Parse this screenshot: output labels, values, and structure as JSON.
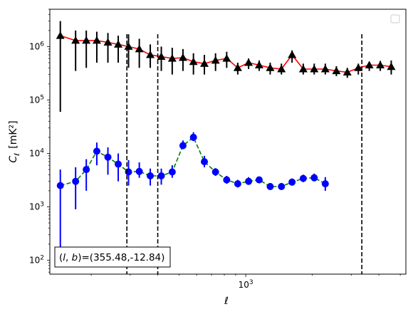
{
  "chart_data": {
    "type": "scatter",
    "xscale": "log",
    "yscale": "log",
    "xlim": [
      130,
      5300
    ],
    "ylim": [
      55,
      5000000
    ],
    "xlabel": "ℓ",
    "ylabel_main": "C",
    "ylabel_sub": "ℓ",
    "ylabel_unit": "[mK²]",
    "x_tick_labels": [
      {
        "value": 1000,
        "base": "10",
        "exp": "3"
      }
    ],
    "y_tick_labels": [
      {
        "value": 100,
        "base": "10",
        "exp": "2"
      },
      {
        "value": 1000,
        "base": "10",
        "exp": "3"
      },
      {
        "value": 10000,
        "base": "10",
        "exp": "4"
      },
      {
        "value": 100000,
        "base": "10",
        "exp": "5"
      },
      {
        "value": 1000000,
        "base": "10",
        "exp": "6"
      }
    ],
    "annotation": "(l, b)=(355.48,-12.84)",
    "annotation_parts": {
      "open": "(",
      "l": "l",
      "comma": ", ",
      "b": "b",
      "close": ")",
      "value": "=(355.48,-12.84)"
    },
    "vlines": [
      290,
      400,
      3350
    ],
    "legend": "top-right (empty)",
    "grid": false,
    "x": [
      145,
      170,
      190,
      212,
      238,
      265,
      295,
      330,
      370,
      415,
      465,
      520,
      580,
      650,
      730,
      820,
      920,
      1030,
      1150,
      1290,
      1450,
      1620,
      1820,
      2040,
      2290,
      2570,
      2880,
      3230,
      3620,
      4060,
      4550
    ],
    "series": [
      {
        "color": "#ff0000",
        "marker": "triangle",
        "marker_color": "#000000",
        "error_color": "#000000",
        "line": "solid",
        "y": [
          1600000,
          1300000,
          1300000,
          1300000,
          1200000,
          1100000,
          1000000,
          900000,
          700000,
          650000,
          600000,
          620000,
          520000,
          480000,
          550000,
          600000,
          400000,
          500000,
          450000,
          400000,
          380000,
          700000,
          380000,
          380000,
          380000,
          350000,
          330000,
          400000,
          450000,
          450000,
          420000
        ],
        "ylow": [
          60000,
          350000,
          400000,
          500000,
          500000,
          500000,
          400000,
          400000,
          400000,
          350000,
          300000,
          350000,
          300000,
          300000,
          350000,
          400000,
          300000,
          380000,
          350000,
          300000,
          300000,
          500000,
          300000,
          300000,
          300000,
          280000,
          260000,
          300000,
          350000,
          350000,
          300000
        ],
        "yhigh": [
          3000000,
          2000000,
          2000000,
          1900000,
          1800000,
          1600000,
          1700000,
          1400000,
          1100000,
          1000000,
          950000,
          900000,
          750000,
          700000,
          750000,
          800000,
          500000,
          600000,
          550000,
          500000,
          480000,
          850000,
          480000,
          480000,
          480000,
          430000,
          400000,
          480000,
          520000,
          540000,
          550000
        ]
      },
      {
        "color": "#008000",
        "marker": "circle",
        "marker_color": "#0000ff",
        "error_color": "#0000ff",
        "line": "dashed",
        "y": [
          2500,
          3000,
          5000,
          11000,
          8500,
          6300,
          4500,
          4600,
          3800,
          3800,
          4500,
          14000,
          20000,
          7000,
          4500,
          3200,
          2700,
          3000,
          3200,
          2400,
          2400,
          2900,
          3400,
          3500,
          2700
        ],
        "ylow": [
          90,
          900,
          2000,
          6000,
          4000,
          3000,
          2500,
          3500,
          2500,
          2600,
          3500,
          12000,
          17000,
          5500,
          3800,
          2700,
          2300,
          2600,
          2800,
          2100,
          2100,
          2500,
          2900,
          3000,
          2000
        ],
        "yhigh": [
          5000,
          5500,
          7800,
          16000,
          13000,
          10000,
          7500,
          6800,
          5200,
          5200,
          6000,
          17500,
          25000,
          9000,
          5300,
          3800,
          3200,
          3600,
          3700,
          2800,
          2800,
          3400,
          4000,
          4200,
          3600
        ],
        "x": [
          145,
          170,
          190,
          212,
          238,
          265,
          295,
          330,
          370,
          415,
          465,
          520,
          580,
          650,
          730,
          820,
          920,
          1030,
          1150,
          1290,
          1450,
          1620,
          1820,
          2040,
          2290
        ]
      }
    ]
  }
}
